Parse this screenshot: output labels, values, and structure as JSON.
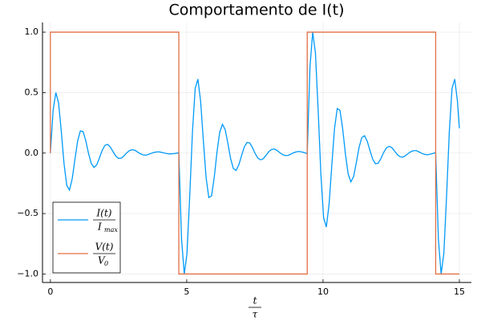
{
  "chart_data": {
    "type": "line",
    "title": "Comportamento de I(t)",
    "xlabel": "t",
    "xlabel_denominator": "τ",
    "xlim": [
      -0.29,
      15.44
    ],
    "ylim": [
      -1.07,
      1.08
    ],
    "xticks": [
      0,
      5,
      10,
      15
    ],
    "yticks": [
      {
        "value": -1,
        "label": "−1.0"
      },
      {
        "value": -0.5,
        "label": "−0.5"
      },
      {
        "value": 0,
        "label": "0.0"
      },
      0.5,
      {
        "value": 1,
        "label": "1.0"
      }
    ],
    "grid": true,
    "legend": "bottom-left",
    "series": [
      {
        "name": "I(t)",
        "denominator": "I",
        "denominator_subscript": "max",
        "color": "#009af9",
        "x": [
          0,
          0.1,
          0.2,
          0.3,
          0.4,
          0.5,
          0.6,
          0.7,
          0.8,
          0.9,
          1,
          1.1,
          1.2,
          1.3,
          1.4,
          1.5,
          1.6,
          1.7,
          1.8,
          1.9,
          2,
          2.1,
          2.2,
          2.3,
          2.4,
          2.5,
          2.6,
          2.7,
          2.8,
          2.9,
          3,
          3.1,
          3.2,
          3.3,
          3.4,
          3.5,
          3.6,
          3.7,
          3.8,
          3.9,
          4,
          4.1,
          4.2,
          4.3,
          4.4,
          4.5,
          4.6,
          4.7,
          4.71,
          4.81,
          4.91,
          5.01,
          5.11,
          5.21,
          5.31,
          5.41,
          5.51,
          5.61,
          5.71,
          5.81,
          5.91,
          6.01,
          6.11,
          6.21,
          6.31,
          6.41,
          6.51,
          6.61,
          6.71,
          6.81,
          6.91,
          7.01,
          7.11,
          7.21,
          7.31,
          7.41,
          7.51,
          7.61,
          7.71,
          7.81,
          7.91,
          8.01,
          8.11,
          8.21,
          8.31,
          8.41,
          8.51,
          8.61,
          8.71,
          8.81,
          8.91,
          9.01,
          9.11,
          9.21,
          9.31,
          9.41,
          9.42,
          9.52,
          9.62,
          9.72,
          9.82,
          9.92,
          10.02,
          10.12,
          10.22,
          10.32,
          10.42,
          10.52,
          10.62,
          10.72,
          10.82,
          10.92,
          11.02,
          11.12,
          11.22,
          11.32,
          11.42,
          11.52,
          11.62,
          11.72,
          11.82,
          11.92,
          12.02,
          12.12,
          12.22,
          12.32,
          12.42,
          12.52,
          12.62,
          12.72,
          12.82,
          12.92,
          13.02,
          13.12,
          13.22,
          13.32,
          13.42,
          13.52,
          13.62,
          13.72,
          13.82,
          13.92,
          14.02,
          14.12,
          14.13,
          14.23,
          14.33,
          14.43,
          14.53,
          14.63,
          14.73,
          14.83,
          14.93,
          15
        ],
        "values": [
          0,
          0.355,
          0.5,
          0.415,
          0.178,
          -0.087,
          -0.267,
          -0.306,
          -0.213,
          -0.052,
          0.101,
          0.184,
          0.177,
          0.1,
          -0.004,
          -0.086,
          -0.119,
          -0.097,
          -0.04,
          0.023,
          0.064,
          0.072,
          0.049,
          0.011,
          -0.025,
          -0.044,
          -0.042,
          -0.023,
          0.002,
          0.021,
          0.028,
          0.023,
          0.009,
          -0.006,
          -0.015,
          -0.017,
          -0.011,
          -0.002,
          0.006,
          0.01,
          0.01,
          0.005,
          -0.001,
          -0.005,
          -0.007,
          -0.005,
          -0.002,
          0.002,
          0,
          -0.71,
          -1,
          -0.83,
          -0.356,
          0.174,
          0.534,
          0.612,
          0.426,
          0.104,
          -0.202,
          -0.368,
          -0.354,
          -0.2,
          0.008,
          0.172,
          0.238,
          0.194,
          0.08,
          -0.046,
          -0.128,
          -0.144,
          -0.098,
          -0.022,
          0.05,
          0.088,
          0.084,
          0.046,
          -0.004,
          -0.042,
          -0.056,
          -0.046,
          -0.018,
          0.012,
          0.03,
          0.034,
          0.022,
          0.004,
          -0.012,
          -0.02,
          -0.02,
          -0.01,
          0.002,
          0.01,
          0.014,
          0.01,
          0.004,
          -0.004,
          0,
          0.71,
          1,
          0.83,
          0.356,
          -0.174,
          -0.534,
          -0.612,
          -0.426,
          -0.104,
          0.202,
          0.368,
          0.354,
          0.2,
          -0.008,
          -0.172,
          -0.238,
          -0.194,
          -0.08,
          0.046,
          0.128,
          0.144,
          0.098,
          0.022,
          -0.05,
          -0.088,
          -0.084,
          -0.046,
          0.004,
          0.042,
          0.056,
          0.046,
          0.018,
          -0.012,
          -0.03,
          -0.034,
          -0.022,
          -0.004,
          0.012,
          0.02,
          0.02,
          0.01,
          -0.002,
          -0.01,
          -0.014,
          -0.01,
          -0.004,
          0.004,
          0,
          -0.71,
          -1,
          -0.83,
          -0.356,
          0.174,
          0.534,
          0.612,
          0.426,
          0.205
        ]
      },
      {
        "name": "V(t)",
        "denominator": "V",
        "denominator_subscript": "0",
        "color": "#e26f46",
        "x": [
          0,
          0,
          4.71,
          4.71,
          9.42,
          9.42,
          14.13,
          14.13,
          15
        ],
        "values": [
          0,
          1,
          1,
          -1,
          -1,
          1,
          1,
          -1,
          -1
        ]
      }
    ]
  }
}
